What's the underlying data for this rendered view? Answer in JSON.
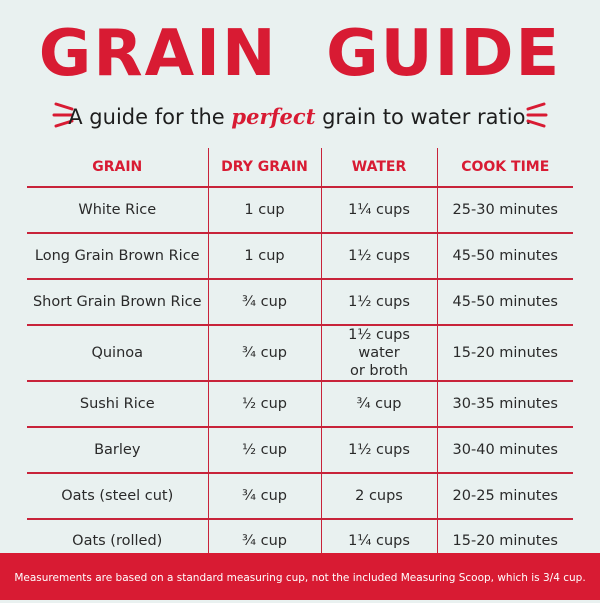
{
  "title": "GRAIN  GUIDE",
  "subtitle": {
    "before": "A guide for the ",
    "emphasis": "perfect",
    "after": " grain to water ratio."
  },
  "table": {
    "headers": [
      "GRAIN",
      "DRY GRAIN",
      "WATER",
      "COOK TIME"
    ],
    "rows": [
      [
        "White Rice",
        "1 cup",
        "1¼ cups",
        "25-30 minutes"
      ],
      [
        "Long Grain Brown Rice",
        "1 cup",
        "1½ cups",
        "45-50 minutes"
      ],
      [
        "Short Grain Brown Rice",
        "¾ cup",
        "1½ cups",
        "45-50 minutes"
      ],
      [
        "Quinoa",
        "¾ cup",
        "1½ cups water\nor broth",
        "15-20 minutes"
      ],
      [
        "Sushi Rice",
        "½ cup",
        "¾ cup",
        "30-35 minutes"
      ],
      [
        "Barley",
        "½ cup",
        "1½ cups",
        "30-40 minutes"
      ],
      [
        "Oats (steel cut)",
        "¾ cup",
        "2 cups",
        "20-25 minutes"
      ],
      [
        "Oats (rolled)",
        "¾ cup",
        "1¼ cups",
        "15-20 minutes"
      ]
    ]
  },
  "footer": "Measurements are based on a standard measuring cup, not the included Measuring Scoop, which is 3/4 cup.",
  "colors": {
    "accent": "#d81b33",
    "background": "#e9f1f0",
    "text": "#2a2a2a"
  }
}
